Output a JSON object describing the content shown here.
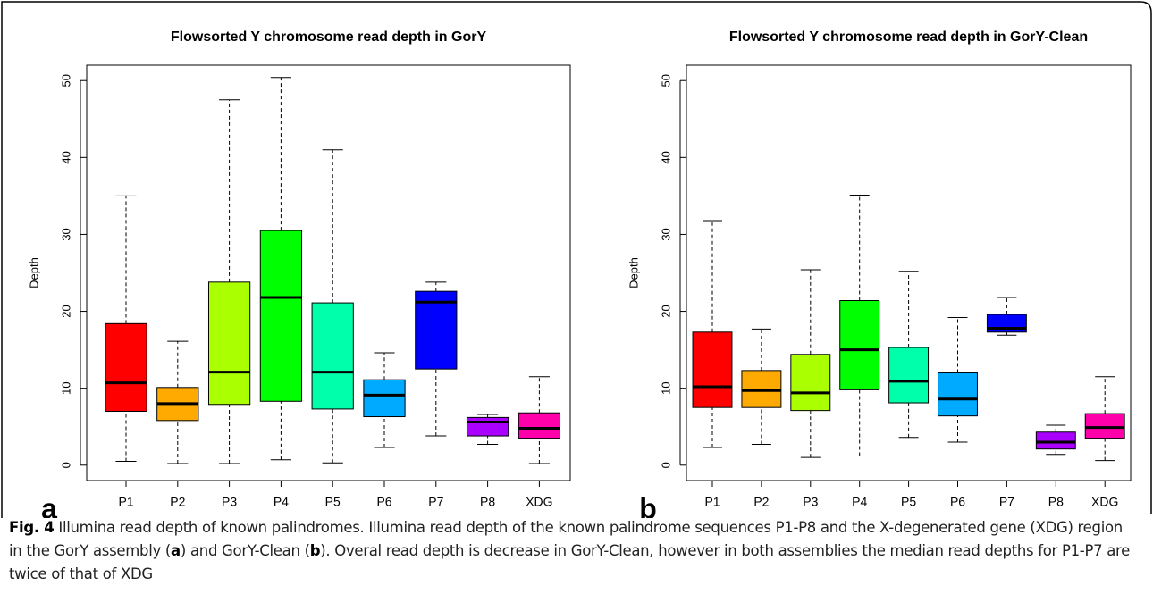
{
  "chart_data": [
    {
      "type": "box",
      "title": "Flowsorted Y chromosome read depth in GorY",
      "panel_label": "a",
      "y_label": "Depth",
      "categories": [
        "P1",
        "P2",
        "P3",
        "P4",
        "P5",
        "P6",
        "P7",
        "P8",
        "XDG"
      ],
      "colors": [
        "#FF0000",
        "#FFAA00",
        "#AAFF00",
        "#00FF00",
        "#00FFAA",
        "#00AAFF",
        "#0000FF",
        "#AA00FF",
        "#FF00AA"
      ],
      "low": [
        0.5,
        0.2,
        0.2,
        0.7,
        0.3,
        2.3,
        3.8,
        2.7,
        0.2
      ],
      "q1": [
        7,
        5.8,
        7.9,
        8.3,
        7.3,
        6.3,
        12.5,
        3.8,
        3.5
      ],
      "median": [
        10.7,
        8,
        12.1,
        21.8,
        12.1,
        9.1,
        21.2,
        5.6,
        4.8
      ],
      "q3": [
        18.4,
        10.1,
        23.8,
        30.5,
        21.1,
        11.1,
        22.6,
        6.2,
        6.8
      ],
      "high": [
        35,
        16.1,
        47.5,
        50.4,
        41,
        14.6,
        23.8,
        6.6,
        11.5
      ],
      "ylim": [
        -2,
        52
      ],
      "yticks": [
        0,
        10,
        20,
        30,
        40,
        50
      ]
    },
    {
      "type": "box",
      "title": "Flowsorted Y chromosome read depth in GorY-Clean",
      "panel_label": "b",
      "y_label": "Depth",
      "categories": [
        "P1",
        "P2",
        "P3",
        "P4",
        "P5",
        "P6",
        "P7",
        "P8",
        "XDG"
      ],
      "colors": [
        "#FF0000",
        "#FFAA00",
        "#AAFF00",
        "#00FF00",
        "#00FFAA",
        "#00AAFF",
        "#0000FF",
        "#AA00FF",
        "#FF00AA"
      ],
      "low": [
        2.3,
        2.7,
        1.0,
        1.2,
        3.6,
        3.0,
        16.9,
        1.4,
        0.6
      ],
      "q1": [
        7.5,
        7.5,
        7.1,
        9.8,
        8.1,
        6.4,
        17.3,
        2.1,
        3.5
      ],
      "median": [
        10.2,
        9.7,
        9.4,
        15,
        10.9,
        8.6,
        17.8,
        3.0,
        4.9
      ],
      "q3": [
        17.3,
        12.3,
        14.4,
        21.4,
        15.3,
        12,
        19.6,
        4.3,
        6.7
      ],
      "high": [
        31.8,
        17.7,
        25.4,
        35.1,
        25.2,
        19.2,
        21.8,
        5.2,
        11.5
      ],
      "ylim": [
        -2,
        52
      ],
      "yticks": [
        0,
        10,
        20,
        30,
        40,
        50
      ]
    }
  ],
  "caption": [
    "Fig. 4",
    " Illumina read depth of known palindromes. Illumina read depth of the known palindrome sequences P1-P8 and the X-degenerated gene (XDG) region in the GorY assembly (",
    "a",
    ") and GorY-Clean (",
    "b",
    "). Overal read depth is decrease in GorY-Clean, however in both assemblies the median read depths for P1-P7 are twice of that of XDG"
  ]
}
